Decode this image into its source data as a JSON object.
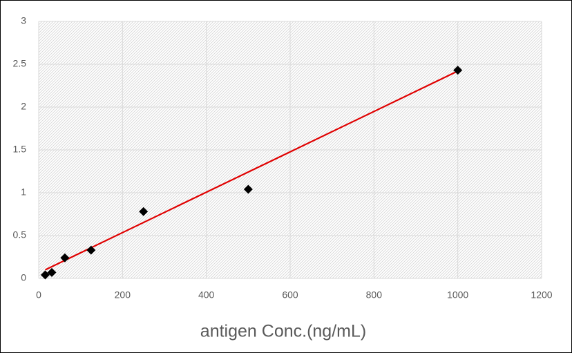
{
  "chart_data": {
    "type": "scatter",
    "x_label": "antigen Conc.(ng/mL)",
    "series": [
      {
        "color": "#000000",
        "x": [
          15.6,
          31.25,
          62.5,
          125,
          250,
          500,
          1000
        ],
        "values": [
          0.04,
          0.07,
          0.24,
          0.33,
          0.78,
          1.04,
          2.43
        ]
      }
    ],
    "trendline": {
      "color": "#e00000",
      "x": [
        15.6,
        1000
      ],
      "values": [
        0.1,
        2.42
      ]
    },
    "xlim": [
      0,
      1200
    ],
    "xticks": [
      0,
      200,
      400,
      600,
      800,
      1000,
      1200
    ],
    "ylim": [
      0,
      3
    ],
    "yticks": [
      0,
      0.5,
      1,
      1.5,
      2,
      2.5,
      3
    ],
    "grid": true
  }
}
